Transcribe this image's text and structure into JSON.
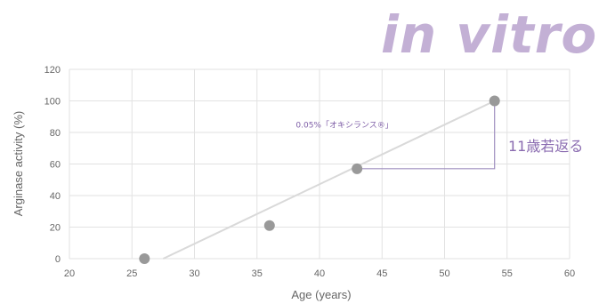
{
  "banner": {
    "text": "in vitro"
  },
  "chart_data": {
    "type": "scatter",
    "title": "",
    "xlabel": "Age (years)",
    "ylabel": "Arginase activity (%)",
    "xlim": [
      20,
      60
    ],
    "ylim": [
      0,
      120
    ],
    "x_ticks": [
      20,
      25,
      30,
      35,
      40,
      45,
      50,
      55,
      60
    ],
    "y_ticks": [
      0,
      20,
      40,
      60,
      80,
      100,
      120
    ],
    "grid": true,
    "legend": "none",
    "series": [
      {
        "x": [
          26,
          36,
          43,
          54
        ],
        "y": [
          0,
          21,
          57,
          100
        ],
        "color": "#999999"
      }
    ],
    "trendline": {
      "from": [
        27.5,
        0
      ],
      "to": [
        54,
        100
      ],
      "color": "#d9d9d9"
    },
    "bracket": {
      "from": [
        43,
        57
      ],
      "corner": [
        54,
        57
      ],
      "to": [
        54,
        100
      ],
      "color": "#a090c0"
    },
    "annotations": [
      {
        "text": "0.05%「オキシランス®」",
        "at": [
          42,
          83
        ],
        "style": "small"
      },
      {
        "text": "11歳若返る",
        "style": "big"
      }
    ]
  }
}
